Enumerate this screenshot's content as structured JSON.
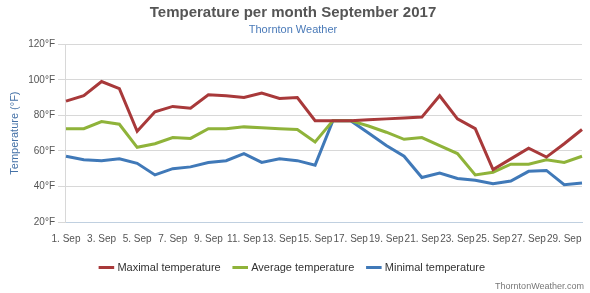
{
  "chart_data": {
    "type": "line",
    "title": "Temperature per month September 2017",
    "subtitle": "Thornton Weather",
    "y_label": "Temperature (°F)",
    "credit": "ThorntonWeather.com",
    "categories": [
      "1. Sep",
      null,
      "3. Sep",
      null,
      "5. Sep",
      null,
      "7. Sep",
      null,
      "9. Sep",
      null,
      "11. Sep",
      null,
      "13. Sep",
      null,
      "15. Sep",
      null,
      "17. Sep",
      null,
      "19. Sep",
      null,
      "21. Sep",
      null,
      "23. Sep",
      null,
      "25. Sep",
      null,
      "27. Sep",
      null,
      "29. Sep",
      null
    ],
    "series": [
      {
        "name": "Maximal temperature",
        "color": "#a8393a",
        "values": [
          88,
          91,
          99,
          95,
          71,
          82,
          85,
          84,
          91.5,
          91,
          90,
          92.5,
          89.5,
          90,
          77,
          77,
          77,
          77.5,
          78,
          78.5,
          79,
          91,
          78,
          72.5,
          49.5,
          55.5,
          61.5,
          56.5,
          64,
          72
        ]
      },
      {
        "name": "Average temperature",
        "color": "#8fb33a",
        "values": [
          72.5,
          72.5,
          76.5,
          75,
          62,
          64,
          67.5,
          67,
          72.5,
          72.5,
          73.5,
          73,
          72.5,
          72,
          65,
          77,
          77,
          74,
          70.5,
          66.5,
          67.5,
          63,
          58.5,
          46.5,
          48,
          52.5,
          52.5,
          55,
          53.5,
          57
        ]
      },
      {
        "name": "Minimal temperature",
        "color": "#4079b8",
        "values": [
          57,
          55,
          54.5,
          55.5,
          53,
          46.5,
          50,
          51,
          53.5,
          54.5,
          58.5,
          53.5,
          55.5,
          54.5,
          52,
          77,
          77,
          70,
          63,
          57,
          45,
          47.5,
          44.5,
          43.5,
          41.5,
          43,
          48.5,
          49,
          41,
          42
        ]
      }
    ],
    "ylim": [
      20,
      120
    ],
    "yticks": [
      {
        "value": 20,
        "label": "20°F"
      },
      {
        "value": 40,
        "label": "40°F"
      },
      {
        "value": 60,
        "label": "60°F"
      },
      {
        "value": 80,
        "label": "80°F"
      },
      {
        "value": 100,
        "label": "100°F"
      },
      {
        "value": 120,
        "label": "120°F"
      }
    ],
    "grid": true,
    "legend": "bottom"
  }
}
